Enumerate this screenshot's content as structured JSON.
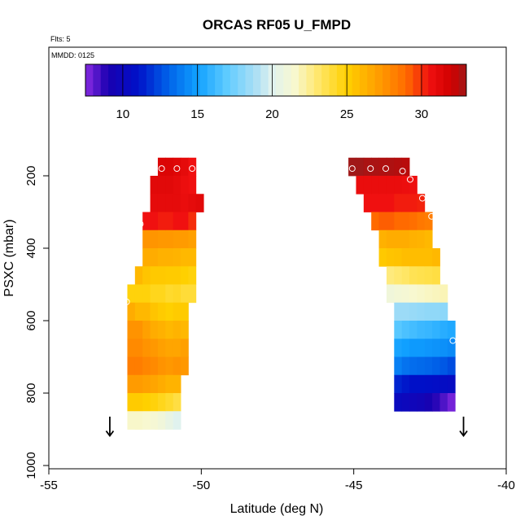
{
  "chart_data": {
    "type": "heatmap",
    "title": "ORCAS RF05 U_FMPD",
    "flts_label": "Flts: 5",
    "mmdd_label": "MMDD: 0125",
    "xlabel": "Latitude (deg N)",
    "ylabel": "PSXC (mbar)",
    "xlim": [
      -55,
      -40
    ],
    "ylim": [
      1000,
      0
    ],
    "x_ticks": [
      -55,
      -50,
      -45,
      -40
    ],
    "x_tick_labels": [
      "-55",
      "-50",
      "-45",
      "-40"
    ],
    "y_ticks": [
      200,
      400,
      600,
      800,
      1000
    ],
    "y_tick_labels": [
      "200",
      "400",
      "600",
      "800",
      "1000"
    ],
    "colorbar": {
      "min": 7.5,
      "max": 33,
      "ticks": [
        10,
        15,
        20,
        25,
        30
      ],
      "tick_labels": [
        "10",
        "15",
        "20",
        "25",
        "30"
      ],
      "stops": [
        {
          "v": 7.5,
          "c": "#8a2be2"
        },
        {
          "v": 9,
          "c": "#1a00b0"
        },
        {
          "v": 11,
          "c": "#0010c8"
        },
        {
          "v": 13,
          "c": "#0060e8"
        },
        {
          "v": 15,
          "c": "#10a0ff"
        },
        {
          "v": 17,
          "c": "#60ccff"
        },
        {
          "v": 19,
          "c": "#b0e0f4"
        },
        {
          "v": 20,
          "c": "#e0f2ee"
        },
        {
          "v": 21.5,
          "c": "#f8f8d0"
        },
        {
          "v": 23,
          "c": "#ffe870"
        },
        {
          "v": 25,
          "c": "#ffd000"
        },
        {
          "v": 27,
          "c": "#ffa000"
        },
        {
          "v": 29,
          "c": "#ff6a00"
        },
        {
          "v": 30.5,
          "c": "#f01010"
        },
        {
          "v": 32,
          "c": "#d00000"
        },
        {
          "v": 33,
          "c": "#a01818"
        }
      ]
    },
    "pressure_bins": [
      {
        "top": 150,
        "bottom": 200
      },
      {
        "top": 200,
        "bottom": 250
      },
      {
        "top": 250,
        "bottom": 300
      },
      {
        "top": 300,
        "bottom": 350
      },
      {
        "top": 350,
        "bottom": 400
      },
      {
        "top": 400,
        "bottom": 450
      },
      {
        "top": 450,
        "bottom": 500
      },
      {
        "top": 500,
        "bottom": 550
      },
      {
        "top": 550,
        "bottom": 600
      },
      {
        "top": 600,
        "bottom": 650
      },
      {
        "top": 650,
        "bottom": 700
      },
      {
        "top": 700,
        "bottom": 750
      },
      {
        "top": 750,
        "bottom": 800
      },
      {
        "top": 800,
        "bottom": 850
      },
      {
        "top": 850,
        "bottom": 900
      }
    ],
    "series": [
      {
        "columns": [
          {
            "lat": -51.4,
            "cells": [
              null,
              null,
              null,
              null,
              null,
              null,
              null,
              null,
              null,
              null,
              null,
              null,
              26.5,
              25.2,
              21.6
            ]
          },
          {
            "lat": -52.05,
            "cells": [
              null,
              null,
              null,
              null,
              null,
              null,
              null,
              null,
              null,
              null,
              null,
              null,
              26.5,
              25.2,
              21.6
            ]
          },
          {
            "lat": -52.3,
            "cells": [
              null,
              null,
              null,
              null,
              null,
              null,
              null,
              24.8,
              26.5,
              27.5,
              27.8,
              28.3,
              27.2,
              25.2,
              21.6
            ]
          },
          {
            "lat": -52.05,
            "cells": [
              null,
              null,
              null,
              null,
              null,
              null,
              26.0,
              24.8,
              26.0,
              27.5,
              27.8,
              28.3,
              27.2,
              25.2,
              21.6
            ]
          },
          {
            "lat": -51.8,
            "cells": [
              null,
              null,
              null,
              30.5,
              27.4,
              26.5,
              25.5,
              24.8,
              26.0,
              27.0,
              27.5,
              28.0,
              27.0,
              25.0,
              21.5
            ]
          },
          {
            "lat": -51.55,
            "cells": [
              null,
              31.2,
              31.0,
              30.5,
              27.4,
              26.5,
              25.3,
              24.5,
              25.5,
              26.5,
              27.3,
              27.8,
              26.8,
              24.8,
              21.3
            ]
          },
          {
            "lat": -51.3,
            "cells": [
              31.5,
              31.2,
              31.0,
              30.3,
              27.3,
              26.3,
              25.3,
              24.5,
              25.2,
              26.3,
              27.0,
              27.5,
              26.5,
              24.5,
              21.0
            ]
          },
          {
            "lat": -51.05,
            "cells": [
              31.5,
              31.2,
              31.0,
              30.3,
              27.3,
              26.3,
              25.2,
              24.2,
              25.0,
              26.0,
              26.8,
              27.3,
              26.2,
              24.2,
              20.5
            ]
          },
          {
            "lat": -50.8,
            "cells": [
              31.3,
              31.0,
              31.0,
              30.5,
              27.2,
              26.2,
              25.2,
              24.3,
              25.2,
              26.2,
              26.8,
              27.5,
              26.2,
              23.8,
              20.0
            ]
          },
          {
            "lat": -50.55,
            "cells": [
              31.0,
              30.7,
              30.8,
              30.5,
              27.2,
              26.0,
              25.0,
              24.0,
              25.2,
              26.0,
              27.0,
              27.3,
              null,
              null,
              null
            ]
          },
          {
            "lat": -50.3,
            "cells": [
              30.5,
              30.5,
              31.0,
              30.0,
              27.0,
              26.0,
              24.8,
              24.0,
              null,
              null,
              null,
              null,
              null,
              null,
              null
            ]
          },
          {
            "lat": -50.05,
            "cells": [
              null,
              null,
              31.2,
              null,
              null,
              null,
              null,
              null,
              null,
              null,
              null,
              null,
              null,
              null,
              null
            ]
          }
        ]
      },
      {
        "columns": [
          {
            "lat": -45.05,
            "cells": [
              33.0,
              null,
              null,
              null,
              null,
              null,
              null,
              null,
              null,
              null,
              null,
              null,
              null,
              null,
              null
            ]
          },
          {
            "lat": -44.8,
            "cells": [
              33.0,
              30.8,
              null,
              null,
              null,
              null,
              null,
              null,
              null,
              null,
              null,
              null,
              null,
              null,
              null
            ]
          },
          {
            "lat": -44.55,
            "cells": [
              32.8,
              30.8,
              30.5,
              null,
              null,
              null,
              null,
              null,
              null,
              null,
              null,
              null,
              null,
              null,
              null
            ]
          },
          {
            "lat": -44.3,
            "cells": [
              32.8,
              30.8,
              30.5,
              29.0,
              null,
              null,
              null,
              null,
              null,
              null,
              null,
              null,
              null,
              null,
              null
            ]
          },
          {
            "lat": -44.05,
            "cells": [
              32.7,
              30.8,
              30.5,
              29.2,
              26.3,
              25.3,
              null,
              null,
              null,
              null,
              null,
              null,
              null,
              null,
              null
            ]
          },
          {
            "lat": -43.8,
            "cells": [
              32.7,
              30.8,
              30.5,
              29.2,
              26.5,
              25.5,
              22.8,
              21.0,
              null,
              null,
              null,
              null,
              null,
              null,
              null
            ]
          },
          {
            "lat": -43.55,
            "cells": [
              32.6,
              30.8,
              30.3,
              29.0,
              26.5,
              25.6,
              23.0,
              21.2,
              18.5,
              16.8,
              15.2,
              14.0,
              11.5,
              10.2,
              null
            ]
          },
          {
            "lat": -43.3,
            "cells": [
              32.5,
              30.7,
              30.3,
              29.0,
              26.5,
              25.8,
              23.2,
              21.3,
              18.5,
              16.5,
              15.0,
              13.6,
              11.2,
              10.0,
              null
            ]
          },
          {
            "lat": -43.05,
            "cells": [
              null,
              30.6,
              30.3,
              28.8,
              26.3,
              25.8,
              23.5,
              21.5,
              18.4,
              16.3,
              14.8,
              13.4,
              11.0,
              9.8,
              null
            ]
          },
          {
            "lat": -42.8,
            "cells": [
              null,
              null,
              30.2,
              28.5,
              26.2,
              25.8,
              23.6,
              21.6,
              18.3,
              16.1,
              14.8,
              13.3,
              11.0,
              9.6,
              null
            ]
          },
          {
            "lat": -42.55,
            "cells": [
              null,
              null,
              null,
              28.3,
              26.0,
              25.8,
              23.7,
              21.7,
              18.2,
              16.0,
              14.7,
              13.2,
              10.9,
              9.2,
              null
            ]
          },
          {
            "lat": -42.3,
            "cells": [
              null,
              null,
              null,
              null,
              null,
              26.0,
              23.8,
              21.8,
              18.2,
              15.8,
              14.6,
              13.0,
              10.8,
              8.8,
              null
            ]
          },
          {
            "lat": -42.05,
            "cells": [
              null,
              null,
              null,
              null,
              null,
              null,
              null,
              21.9,
              18.1,
              15.6,
              14.5,
              12.8,
              10.6,
              8.3,
              null
            ]
          },
          {
            "lat": -41.8,
            "cells": [
              null,
              null,
              null,
              null,
              null,
              null,
              null,
              null,
              null,
              15.4,
              14.3,
              12.5,
              10.5,
              7.8,
              null
            ]
          }
        ]
      }
    ],
    "flight_points": [
      {
        "lat": -51.3,
        "p": 180
      },
      {
        "lat": -50.8,
        "p": 180
      },
      {
        "lat": -50.3,
        "p": 180
      },
      {
        "lat": -52.0,
        "p": 333
      },
      {
        "lat": -52.1,
        "p": 380
      },
      {
        "lat": -52.3,
        "p": 450
      },
      {
        "lat": -52.45,
        "p": 548
      },
      {
        "lat": -52.6,
        "p": 655
      },
      {
        "lat": -52.65,
        "p": 745
      },
      {
        "lat": -45.05,
        "p": 180
      },
      {
        "lat": -44.45,
        "p": 180
      },
      {
        "lat": -43.95,
        "p": 180
      },
      {
        "lat": -43.4,
        "p": 187
      },
      {
        "lat": -43.15,
        "p": 210
      },
      {
        "lat": -42.75,
        "p": 262
      },
      {
        "lat": -42.45,
        "p": 312
      },
      {
        "lat": -42.2,
        "p": 360
      },
      {
        "lat": -41.75,
        "p": 655
      },
      {
        "lat": -41.55,
        "p": 750
      }
    ],
    "arrows": [
      {
        "lat": -53.0,
        "p_start": 865,
        "p_end": 918
      },
      {
        "lat": -41.4,
        "p_start": 865,
        "p_end": 918
      }
    ]
  }
}
